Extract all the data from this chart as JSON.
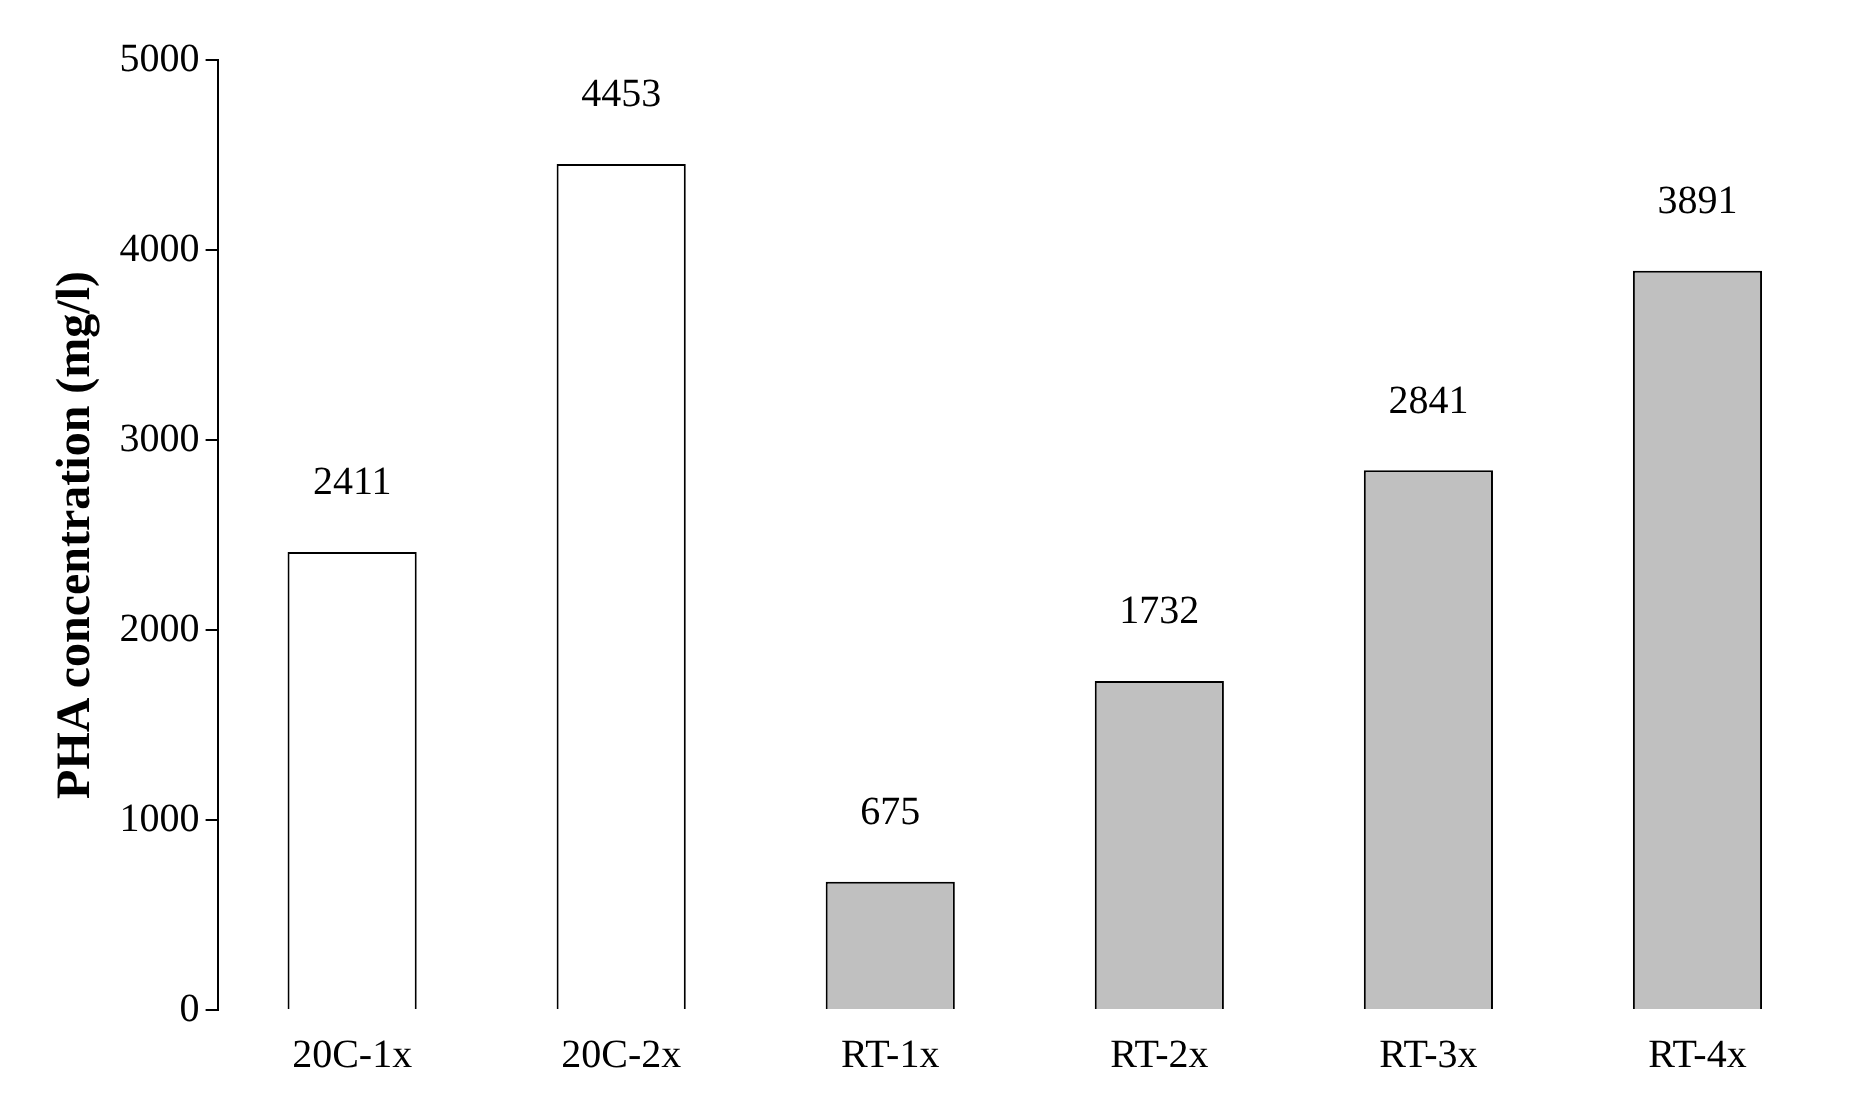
{
  "chart_data": {
    "type": "bar",
    "ylabel": "PHA concentration (mg/l)",
    "categories": [
      "20C-1x",
      "20C-2x",
      "RT-1x",
      "RT-2x",
      "RT-3x",
      "RT-4x"
    ],
    "values": [
      2411,
      4453,
      675,
      1732,
      2841,
      3891
    ],
    "colors": [
      "#ffffff",
      "#ffffff",
      "#c0c0c0",
      "#c0c0c0",
      "#c0c0c0",
      "#c0c0c0"
    ],
    "ylim": [
      0,
      5000
    ],
    "yticks": [
      0,
      1000,
      2000,
      3000,
      4000,
      5000
    ],
    "grid": false,
    "legend": false,
    "data_labels": true
  }
}
